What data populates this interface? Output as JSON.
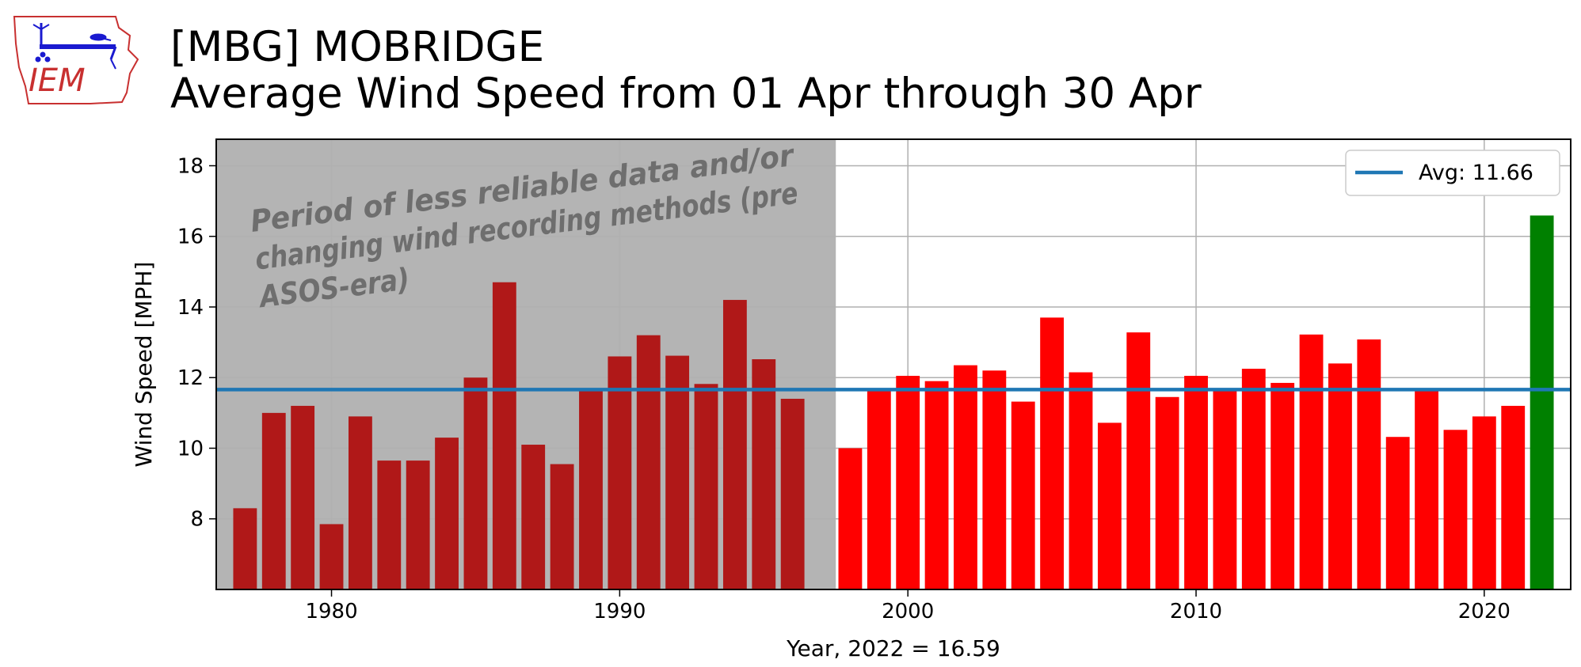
{
  "header": {
    "logo_text": "IEM",
    "title_line1": "[MBG] MOBRIDGE",
    "title_line2": "Average Wind Speed from 01 Apr through 30 Apr"
  },
  "chart_data": {
    "type": "bar",
    "title": "[MBG] MOBRIDGE / Average Wind Speed from 01 Apr through 30 Apr",
    "xlabel": "Year, 2022 = 16.59",
    "ylabel": "Wind Speed [MPH]",
    "xlim": [
      1976,
      2023
    ],
    "ylim": [
      6,
      18.75
    ],
    "x_ticks": [
      1980,
      1990,
      2000,
      2010,
      2020
    ],
    "y_ticks": [
      8,
      10,
      12,
      14,
      16,
      18
    ],
    "grid": true,
    "legend": {
      "placement": "top-right",
      "entries": [
        {
          "label": "Avg: 11.66",
          "color": "#1f77b4"
        }
      ]
    },
    "average": 11.66,
    "annotation": {
      "lines": [
        "Period of less reliable data and/or",
        "changing wind recording methods (pre",
        "ASOS-era)"
      ],
      "shaded_until_year": 1997.5
    },
    "colors": {
      "pre_asos": "#b01818",
      "asos": "#ff0000",
      "current": "#008000",
      "avg_line": "#1f77b4",
      "shade": "#b4b4b4"
    },
    "series": [
      {
        "x": [
          1977,
          1978,
          1979,
          1980,
          1981,
          1982,
          1983,
          1984,
          1985,
          1986,
          1987,
          1988,
          1989,
          1990,
          1991,
          1992,
          1993,
          1994,
          1995,
          1996,
          1997,
          1998,
          1999,
          2000,
          2001,
          2002,
          2003,
          2004,
          2005,
          2006,
          2007,
          2008,
          2009,
          2010,
          2011,
          2012,
          2013,
          2014,
          2015,
          2016,
          2017,
          2018,
          2019,
          2020,
          2021,
          2022
        ],
        "values": [
          8.3,
          11.0,
          11.2,
          7.85,
          10.9,
          9.65,
          9.65,
          10.3,
          12.0,
          14.7,
          10.1,
          9.55,
          11.65,
          12.6,
          13.2,
          12.62,
          11.82,
          14.2,
          12.52,
          11.4,
          null,
          10.0,
          11.62,
          12.05,
          11.9,
          12.35,
          12.2,
          11.32,
          13.7,
          12.15,
          10.72,
          13.28,
          11.45,
          12.05,
          11.7,
          12.25,
          11.85,
          13.22,
          12.4,
          13.08,
          10.32,
          11.65,
          10.52,
          10.9,
          11.2,
          16.59
        ]
      }
    ]
  }
}
